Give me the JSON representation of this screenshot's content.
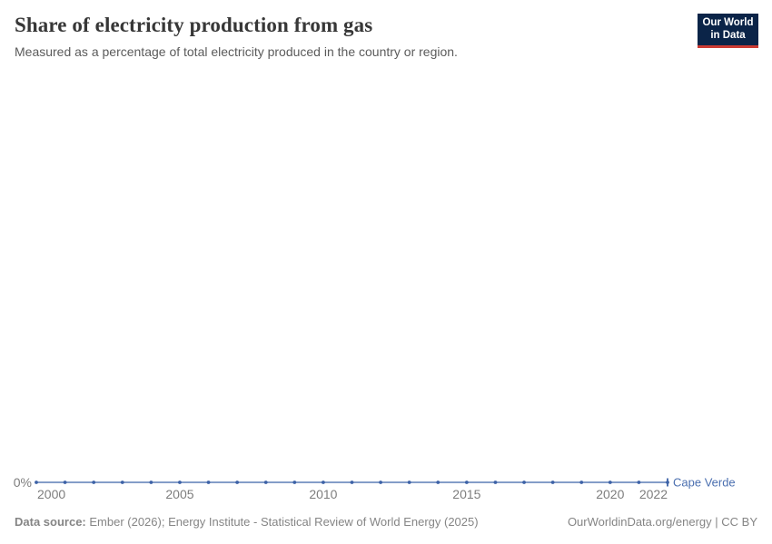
{
  "header": {
    "title": "Share of electricity production from gas",
    "subtitle": "Measured as a percentage of total electricity produced in the country or region.",
    "logo": {
      "line1": "Our World",
      "line2": "in Data"
    }
  },
  "chart_data": {
    "type": "line",
    "title": "Share of electricity production from gas",
    "xlabel": "",
    "ylabel": "",
    "x": [
      2000,
      2001,
      2002,
      2003,
      2004,
      2005,
      2006,
      2007,
      2008,
      2009,
      2010,
      2011,
      2012,
      2013,
      2014,
      2015,
      2016,
      2017,
      2018,
      2019,
      2020,
      2021,
      2022
    ],
    "series": [
      {
        "name": "Cape Verde",
        "values": [
          0,
          0,
          0,
          0,
          0,
          0,
          0,
          0,
          0,
          0,
          0,
          0,
          0,
          0,
          0,
          0,
          0,
          0,
          0,
          0,
          0,
          0,
          0
        ]
      }
    ],
    "x_tick_labels": [
      "2000",
      "2005",
      "2010",
      "2015",
      "2020",
      "2022"
    ],
    "y_tick_labels": [
      "0%"
    ],
    "xlim": [
      2000,
      2022
    ],
    "ylim": [
      0,
      0
    ],
    "grid": false,
    "legend_position": "end-of-line",
    "markers": true
  },
  "footer": {
    "source_label": "Data source:",
    "source_text": " Ember (2026); Energy Institute - Statistical Review of World Energy (2025)",
    "link_text": "OurWorldinData.org/energy | CC BY"
  },
  "colors": {
    "title": "#373737",
    "subtitle": "#5b5b5b",
    "axis_text": "#7d7d7d",
    "footer_text": "#858585",
    "line": "#5c7db5",
    "marker": "#3d62a7",
    "series_label": "#4c70b0",
    "logo_background": "#0b2448",
    "logo_accent": "#cc3b33"
  }
}
